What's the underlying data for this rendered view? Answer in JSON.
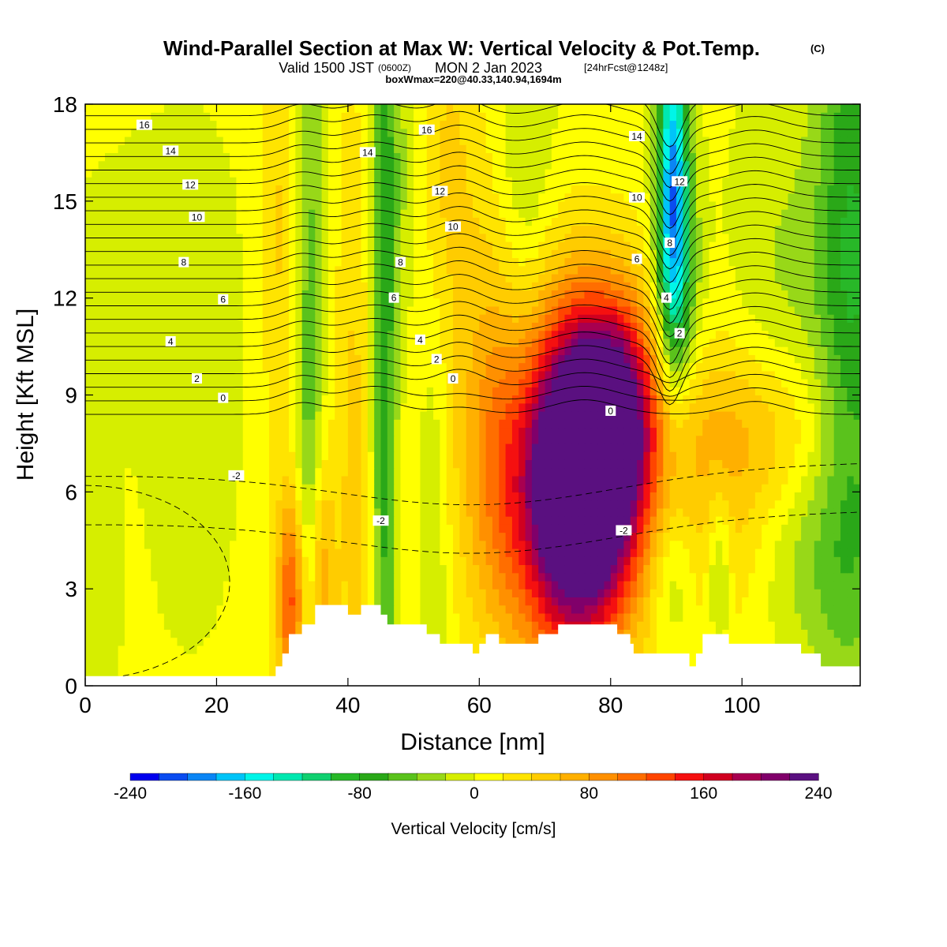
{
  "chart_data": {
    "type": "heatmap",
    "title": "Wind-Parallel Section at Max W: Vertical Velocity & Pot.Temp.",
    "title_mark": "(C)",
    "subtitle": {
      "prefix": "Valid 1500 JST",
      "utc": "(0600Z)",
      "date": "MON 2 Jan 2023",
      "forecast": "[24hrFcst@1248z]"
    },
    "note": "boxWmax=220@40.33,140.94,1694m",
    "xlabel": "Distance [nm]",
    "ylabel": "Height [Kft MSL]",
    "xlim": [
      0,
      118
    ],
    "ylim": [
      0,
      18
    ],
    "xticks": [
      "0",
      "20",
      "40",
      "60",
      "80",
      "100"
    ],
    "yticks": [
      "0",
      "3",
      "6",
      "9",
      "12",
      "15",
      "18"
    ],
    "colorbar": {
      "label": "Vertical Velocity [cm/s]",
      "ticks": [
        "-240",
        "-160",
        "-80",
        "0",
        "80",
        "160",
        "240"
      ],
      "range": [
        -240,
        240
      ],
      "colors": [
        "#0000ee",
        "#0a4cf0",
        "#0a85f5",
        "#00c4f8",
        "#00f5e8",
        "#00e8b0",
        "#10d070",
        "#28b828",
        "#2aa818",
        "#5ac21c",
        "#98d818",
        "#d6ee00",
        "#ffff00",
        "#ffe400",
        "#ffcc00",
        "#ffb000",
        "#ff9000",
        "#ff6e00",
        "#ff4500",
        "#f51010",
        "#d00020",
        "#a80050",
        "#80006a",
        "#5a1080"
      ]
    },
    "terrain_nm_kft": [
      [
        0,
        0.3
      ],
      [
        29,
        0.3
      ],
      [
        29,
        0.6
      ],
      [
        30,
        0.6
      ],
      [
        30,
        1.0
      ],
      [
        31,
        1.0
      ],
      [
        31,
        1.6
      ],
      [
        33,
        1.6
      ],
      [
        33,
        1.9
      ],
      [
        35,
        1.9
      ],
      [
        35,
        2.5
      ],
      [
        40,
        2.5
      ],
      [
        40,
        2.2
      ],
      [
        42,
        2.2
      ],
      [
        42,
        2.5
      ],
      [
        45,
        2.5
      ],
      [
        45,
        2.2
      ],
      [
        46,
        2.2
      ],
      [
        46,
        1.9
      ],
      [
        52,
        1.9
      ],
      [
        52,
        1.6
      ],
      [
        54,
        1.6
      ],
      [
        54,
        1.3
      ],
      [
        59,
        1.3
      ],
      [
        59,
        1.0
      ],
      [
        60,
        1.0
      ],
      [
        60,
        1.3
      ],
      [
        61,
        1.3
      ],
      [
        61,
        1.6
      ],
      [
        63,
        1.6
      ],
      [
        63,
        1.3
      ],
      [
        69,
        1.3
      ],
      [
        69,
        1.6
      ],
      [
        72,
        1.6
      ],
      [
        72,
        1.9
      ],
      [
        81,
        1.9
      ],
      [
        81,
        1.6
      ],
      [
        83,
        1.6
      ],
      [
        83,
        1.3
      ],
      [
        83.5,
        1.3
      ],
      [
        83.5,
        1.0
      ],
      [
        92,
        1.0
      ],
      [
        92,
        0.6
      ],
      [
        93,
        0.6
      ],
      [
        93,
        1.0
      ],
      [
        94,
        1.0
      ],
      [
        94,
        1.6
      ],
      [
        98,
        1.6
      ],
      [
        98,
        1.3
      ],
      [
        109,
        1.3
      ],
      [
        109,
        1.0
      ],
      [
        112,
        1.0
      ],
      [
        112,
        0.6
      ],
      [
        118,
        0.6
      ]
    ],
    "w_cells": [
      {
        "x": 76,
        "y": 6.5,
        "sx": 5,
        "sy": 3.2,
        "v": 230
      },
      {
        "x": 72,
        "y": 5.8,
        "sx": 7,
        "sy": 3.5,
        "v": 120
      },
      {
        "x": 81,
        "y": 8.3,
        "sx": 4,
        "sy": 2.3,
        "v": 140
      },
      {
        "x": 76,
        "y": 7.3,
        "sx": 14,
        "sy": 4.2,
        "v": 60
      },
      {
        "x": 31.5,
        "y": 2.6,
        "sx": 1.6,
        "sy": 2.5,
        "v": 130
      },
      {
        "x": 36,
        "y": 3.0,
        "sx": 1.4,
        "sy": 3.0,
        "v": 80
      },
      {
        "x": 41,
        "y": 6.0,
        "sx": 2.2,
        "sy": 10,
        "v": 40
      },
      {
        "x": 30,
        "y": 14,
        "sx": 2.5,
        "sy": 5,
        "v": 40
      },
      {
        "x": 55,
        "y": 16,
        "sx": 3.5,
        "sy": 4,
        "v": 40
      },
      {
        "x": 62,
        "y": 9,
        "sx": 3,
        "sy": 5,
        "v": 30
      },
      {
        "x": 103,
        "y": 7.8,
        "sx": 9,
        "sy": 2,
        "v": 55
      },
      {
        "x": 98,
        "y": 4.0,
        "sx": 6,
        "sy": 2.5,
        "v": 20
      },
      {
        "x": 34,
        "y": 9,
        "sx": 1.7,
        "sy": 10,
        "v": -65
      },
      {
        "x": 45.5,
        "y": 8,
        "sx": 1.4,
        "sy": 10,
        "v": -80
      },
      {
        "x": 47.5,
        "y": 16,
        "sx": 3,
        "sy": 4,
        "v": -30
      },
      {
        "x": 53,
        "y": 5.5,
        "sx": 1.8,
        "sy": 5,
        "v": -35
      },
      {
        "x": 67,
        "y": 16,
        "sx": 3,
        "sy": 5,
        "v": -30
      },
      {
        "x": 89.5,
        "y": 15.5,
        "sx": 1.7,
        "sy": 3.5,
        "v": -190
      },
      {
        "x": 90.5,
        "y": 12,
        "sx": 2.5,
        "sy": 2.5,
        "v": -60
      },
      {
        "x": 89.5,
        "y": 3.4,
        "sx": 2.5,
        "sy": 1.8,
        "v": -45
      },
      {
        "x": 96.5,
        "y": 3.6,
        "sx": 1.2,
        "sy": 1.8,
        "v": -55
      },
      {
        "x": 110,
        "y": 4.2,
        "sx": 6,
        "sy": 2.5,
        "v": -35
      },
      {
        "x": 117,
        "y": 13,
        "sx": 4,
        "sy": 9,
        "v": -85
      },
      {
        "x": 106,
        "y": 12,
        "sx": 6,
        "sy": 4,
        "v": -30
      },
      {
        "x": 2,
        "y": 3,
        "sx": 2,
        "sy": 4,
        "v": -22
      },
      {
        "x": 16,
        "y": 9,
        "sx": 5,
        "sy": 5,
        "v": -18
      },
      {
        "x": 8,
        "y": 13,
        "sx": 10,
        "sy": 3,
        "v": -10
      }
    ],
    "theta_contours": [
      {
        "label": "16",
        "base": 17.35,
        "label_x": 9
      },
      {
        "label": "14",
        "base": 16.55,
        "label_x": 13
      },
      {
        "label": "12",
        "base": 15.5,
        "label_x": 16
      },
      {
        "label": "10",
        "base": 14.5,
        "label_x": 17
      },
      {
        "label": "8",
        "base": 13.1,
        "label_x": 15
      },
      {
        "label": "6",
        "base": 11.95,
        "label_x": 21
      },
      {
        "label": "4",
        "base": 10.65,
        "label_x": 13
      },
      {
        "label": "2",
        "base": 9.5,
        "label_x": 17
      },
      {
        "label": "0",
        "base": 8.9,
        "label_x": 21
      },
      {
        "label": "-2",
        "base": 6.5,
        "label_x": 23
      }
    ],
    "theta_labels_extra": [
      {
        "label": "16",
        "x": 52,
        "y": 17.2
      },
      {
        "label": "14",
        "x": 43,
        "y": 16.5
      },
      {
        "label": "12",
        "x": 54,
        "y": 15.3
      },
      {
        "label": "10",
        "x": 56,
        "y": 14.2
      },
      {
        "label": "8",
        "x": 48,
        "y": 13.1
      },
      {
        "label": "6",
        "x": 47,
        "y": 12.0
      },
      {
        "label": "4",
        "x": 51,
        "y": 10.7
      },
      {
        "label": "2",
        "x": 53.5,
        "y": 10.1
      },
      {
        "label": "0",
        "x": 56,
        "y": 9.5
      },
      {
        "label": "14",
        "x": 84,
        "y": 17.0
      },
      {
        "label": "12",
        "x": 90.5,
        "y": 15.6
      },
      {
        "label": "10",
        "x": 84,
        "y": 15.1
      },
      {
        "label": "8",
        "x": 89,
        "y": 13.7
      },
      {
        "label": "6",
        "x": 84,
        "y": 13.2
      },
      {
        "label": "4",
        "x": 88.5,
        "y": 12.0
      },
      {
        "label": "2",
        "x": 90.5,
        "y": 10.9
      },
      {
        "label": "0",
        "x": 80,
        "y": 8.5
      },
      {
        "label": "-2",
        "x": 45,
        "y": 5.1
      },
      {
        "label": "-2",
        "x": 82,
        "y": 4.8
      }
    ]
  }
}
